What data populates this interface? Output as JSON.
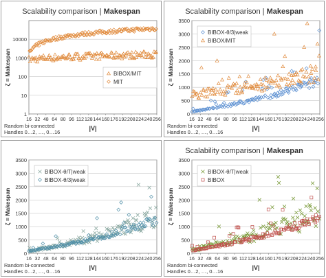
{
  "chart_data": [
    {
      "type": "scatter",
      "title_main": "Scalability comparison | ",
      "title_bold": "Makespan",
      "ylabel": "ζ = Makespan",
      "xlabel": "|V|",
      "yscale": "log",
      "ylim": [
        1,
        100000
      ],
      "yticks": [
        "1",
        "10",
        "100",
        "1000",
        "10000"
      ],
      "xticks": [
        "16",
        "32",
        "48",
        "64",
        "80",
        "96",
        "112",
        "128",
        "144",
        "160",
        "176",
        "192",
        "208",
        "224",
        "240",
        "256"
      ],
      "xlim": [
        16,
        256
      ],
      "note_lines": [
        "Random bi-connected",
        "Handles 0…2, …, 0…16"
      ],
      "legend_position": "bottom-right",
      "grid": true,
      "series": [
        {
          "name": "BIBOX/MIT",
          "marker": "triangle",
          "color": "#e0893a",
          "trend": [
            [
              16,
              800
            ],
            [
              48,
              1000
            ],
            [
              96,
              1150
            ],
            [
              160,
              1300
            ],
            [
              256,
              1550
            ]
          ],
          "spread": 0.18
        },
        {
          "name": "MIT",
          "marker": "diamond",
          "color": "#e0893a",
          "trend": [
            [
              16,
              1800
            ],
            [
              48,
              8000
            ],
            [
              96,
              16000
            ],
            [
              160,
              25000
            ],
            [
              256,
              38000
            ]
          ],
          "spread": 0.1
        }
      ]
    },
    {
      "type": "scatter",
      "title_main": "Scalability comparison | ",
      "title_bold": "Makespan",
      "ylabel": "ζ = Makespan",
      "xlabel": "|V|",
      "yscale": "linear",
      "ylim": [
        0,
        3500
      ],
      "yticks": [
        "0",
        "500",
        "1000",
        "1500",
        "2000",
        "2500",
        "3000",
        "3500"
      ],
      "xticks": [
        "16",
        "32",
        "48",
        "64",
        "80",
        "96",
        "112",
        "128",
        "144",
        "160",
        "176",
        "192",
        "208",
        "224",
        "240",
        "256"
      ],
      "xlim": [
        16,
        256
      ],
      "note_lines": [
        "Random bi-connected",
        "Handles 0…2, …, 0…16"
      ],
      "legend_position": "top-left",
      "grid": true,
      "series": [
        {
          "name": "BIBOX-θ/3|weak",
          "marker": "diamond",
          "color": "#5b8fd1",
          "trend": [
            [
              16,
              80
            ],
            [
              80,
              300
            ],
            [
              160,
              650
            ],
            [
              256,
              1250
            ]
          ],
          "spread": 0.14
        },
        {
          "name": "BIBOX/MIT",
          "marker": "triangle",
          "color": "#e0893a",
          "trend": [
            [
              16,
              700
            ],
            [
              80,
              900
            ],
            [
              160,
              1150
            ],
            [
              256,
              1550
            ]
          ],
          "spread": 0.22
        }
      ]
    },
    {
      "type": "scatter",
      "title_main": "",
      "title_bold": "",
      "ylabel": "ζ = Makespan",
      "xlabel": "|V|",
      "yscale": "linear",
      "ylim": [
        0,
        3500
      ],
      "yticks": [
        "0",
        "500",
        "1000",
        "1500",
        "2000",
        "2500",
        "3000",
        "3500"
      ],
      "xticks": [
        "16",
        "32",
        "48",
        "64",
        "80",
        "96",
        "112",
        "128",
        "144",
        "160",
        "176",
        "192",
        "208",
        "224",
        "240",
        "256"
      ],
      "xlim": [
        16,
        256
      ],
      "note_lines": [
        "Random bi-connected",
        "Handles 0…2, …, 0…16"
      ],
      "legend_position": "top-left",
      "grid": true,
      "series": [
        {
          "name": "BIBOX-θ/T|weak",
          "marker": "x",
          "color": "#8aa8a0",
          "trend": [
            [
              16,
              80
            ],
            [
              80,
              320
            ],
            [
              160,
              700
            ],
            [
              256,
              1400
            ]
          ],
          "spread": 0.3
        },
        {
          "name": "BIBOX-θ/3|weak",
          "marker": "diamond",
          "color": "#4f8fa8",
          "trend": [
            [
              16,
              80
            ],
            [
              80,
              300
            ],
            [
              160,
              650
            ],
            [
              256,
              1250
            ]
          ],
          "spread": 0.14
        }
      ]
    },
    {
      "type": "scatter",
      "title_main": "Scalability comparison | ",
      "title_bold": "Makespan",
      "ylabel": "ζ = Makespan",
      "xlabel": "|V|",
      "yscale": "linear",
      "ylim": [
        0,
        3500
      ],
      "yticks": [
        "0",
        "500",
        "1000",
        "1500",
        "2000",
        "2500",
        "3000",
        "3500"
      ],
      "xticks": [
        "16",
        "32",
        "48",
        "64",
        "80",
        "96",
        "112",
        "128",
        "144",
        "160",
        "176",
        "192",
        "208",
        "224",
        "240",
        "256"
      ],
      "xlim": [
        16,
        256
      ],
      "note_lines": [
        "Random bi-connected",
        "Handles 0…2, …, 0…16"
      ],
      "legend_position": "top-left",
      "grid": true,
      "series": [
        {
          "name": "BIBOX-θ/T|weak",
          "marker": "x",
          "color": "#7a9a3a",
          "trend": [
            [
              16,
              120
            ],
            [
              80,
              400
            ],
            [
              160,
              800
            ],
            [
              256,
              1500
            ]
          ],
          "spread": 0.35
        },
        {
          "name": "BIBOX",
          "marker": "square",
          "color": "#c0504d",
          "trend": [
            [
              16,
              100
            ],
            [
              80,
              330
            ],
            [
              160,
              700
            ],
            [
              256,
              1300
            ]
          ],
          "spread": 0.12
        }
      ]
    }
  ]
}
